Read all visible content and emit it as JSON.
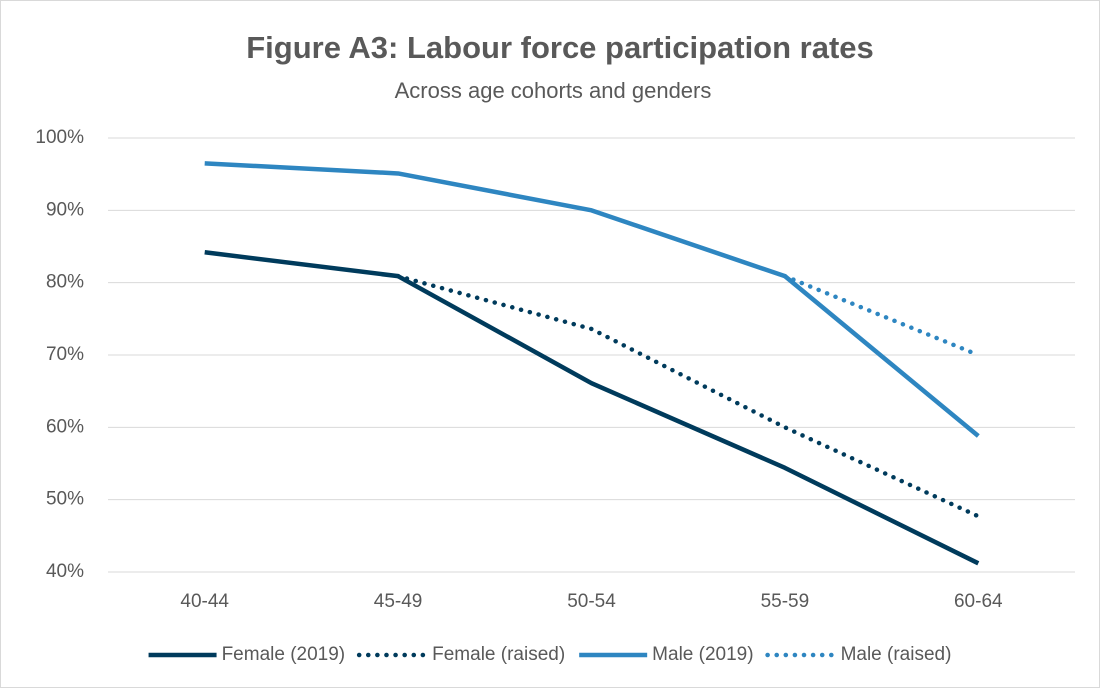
{
  "chart_data": {
    "type": "line",
    "title": "Figure A3: Labour force participation rates",
    "subtitle": "Across age cohorts and genders",
    "categories": [
      "40-44",
      "45-49",
      "50-54",
      "55-59",
      "60-64"
    ],
    "series": [
      {
        "name": "Female (2019)",
        "color": "#003b5c",
        "style": "solid",
        "values": [
          84.2,
          80.9,
          66.1,
          54.4,
          41.2
        ]
      },
      {
        "name": "Female (raised)",
        "color": "#003b5c",
        "style": "dotted",
        "values": [
          null,
          80.9,
          73.6,
          60.0,
          47.7
        ]
      },
      {
        "name": "Male (2019)",
        "color": "#2e86c1",
        "style": "solid",
        "values": [
          96.5,
          95.1,
          90.0,
          80.9,
          58.8
        ]
      },
      {
        "name": "Male (raised)",
        "color": "#2e86c1",
        "style": "dotted",
        "values": [
          null,
          null,
          null,
          80.9,
          70.0
        ]
      }
    ],
    "ylim": [
      40,
      100
    ],
    "yticks": [
      {
        "value": 40,
        "label": "40%"
      },
      {
        "value": 50,
        "label": "50%"
      },
      {
        "value": 60,
        "label": "60%"
      },
      {
        "value": 70,
        "label": "70%"
      },
      {
        "value": 80,
        "label": "80%"
      },
      {
        "value": 90,
        "label": "90%"
      },
      {
        "value": 100,
        "label": "100%"
      }
    ],
    "grid": true,
    "legend": "bottom"
  }
}
